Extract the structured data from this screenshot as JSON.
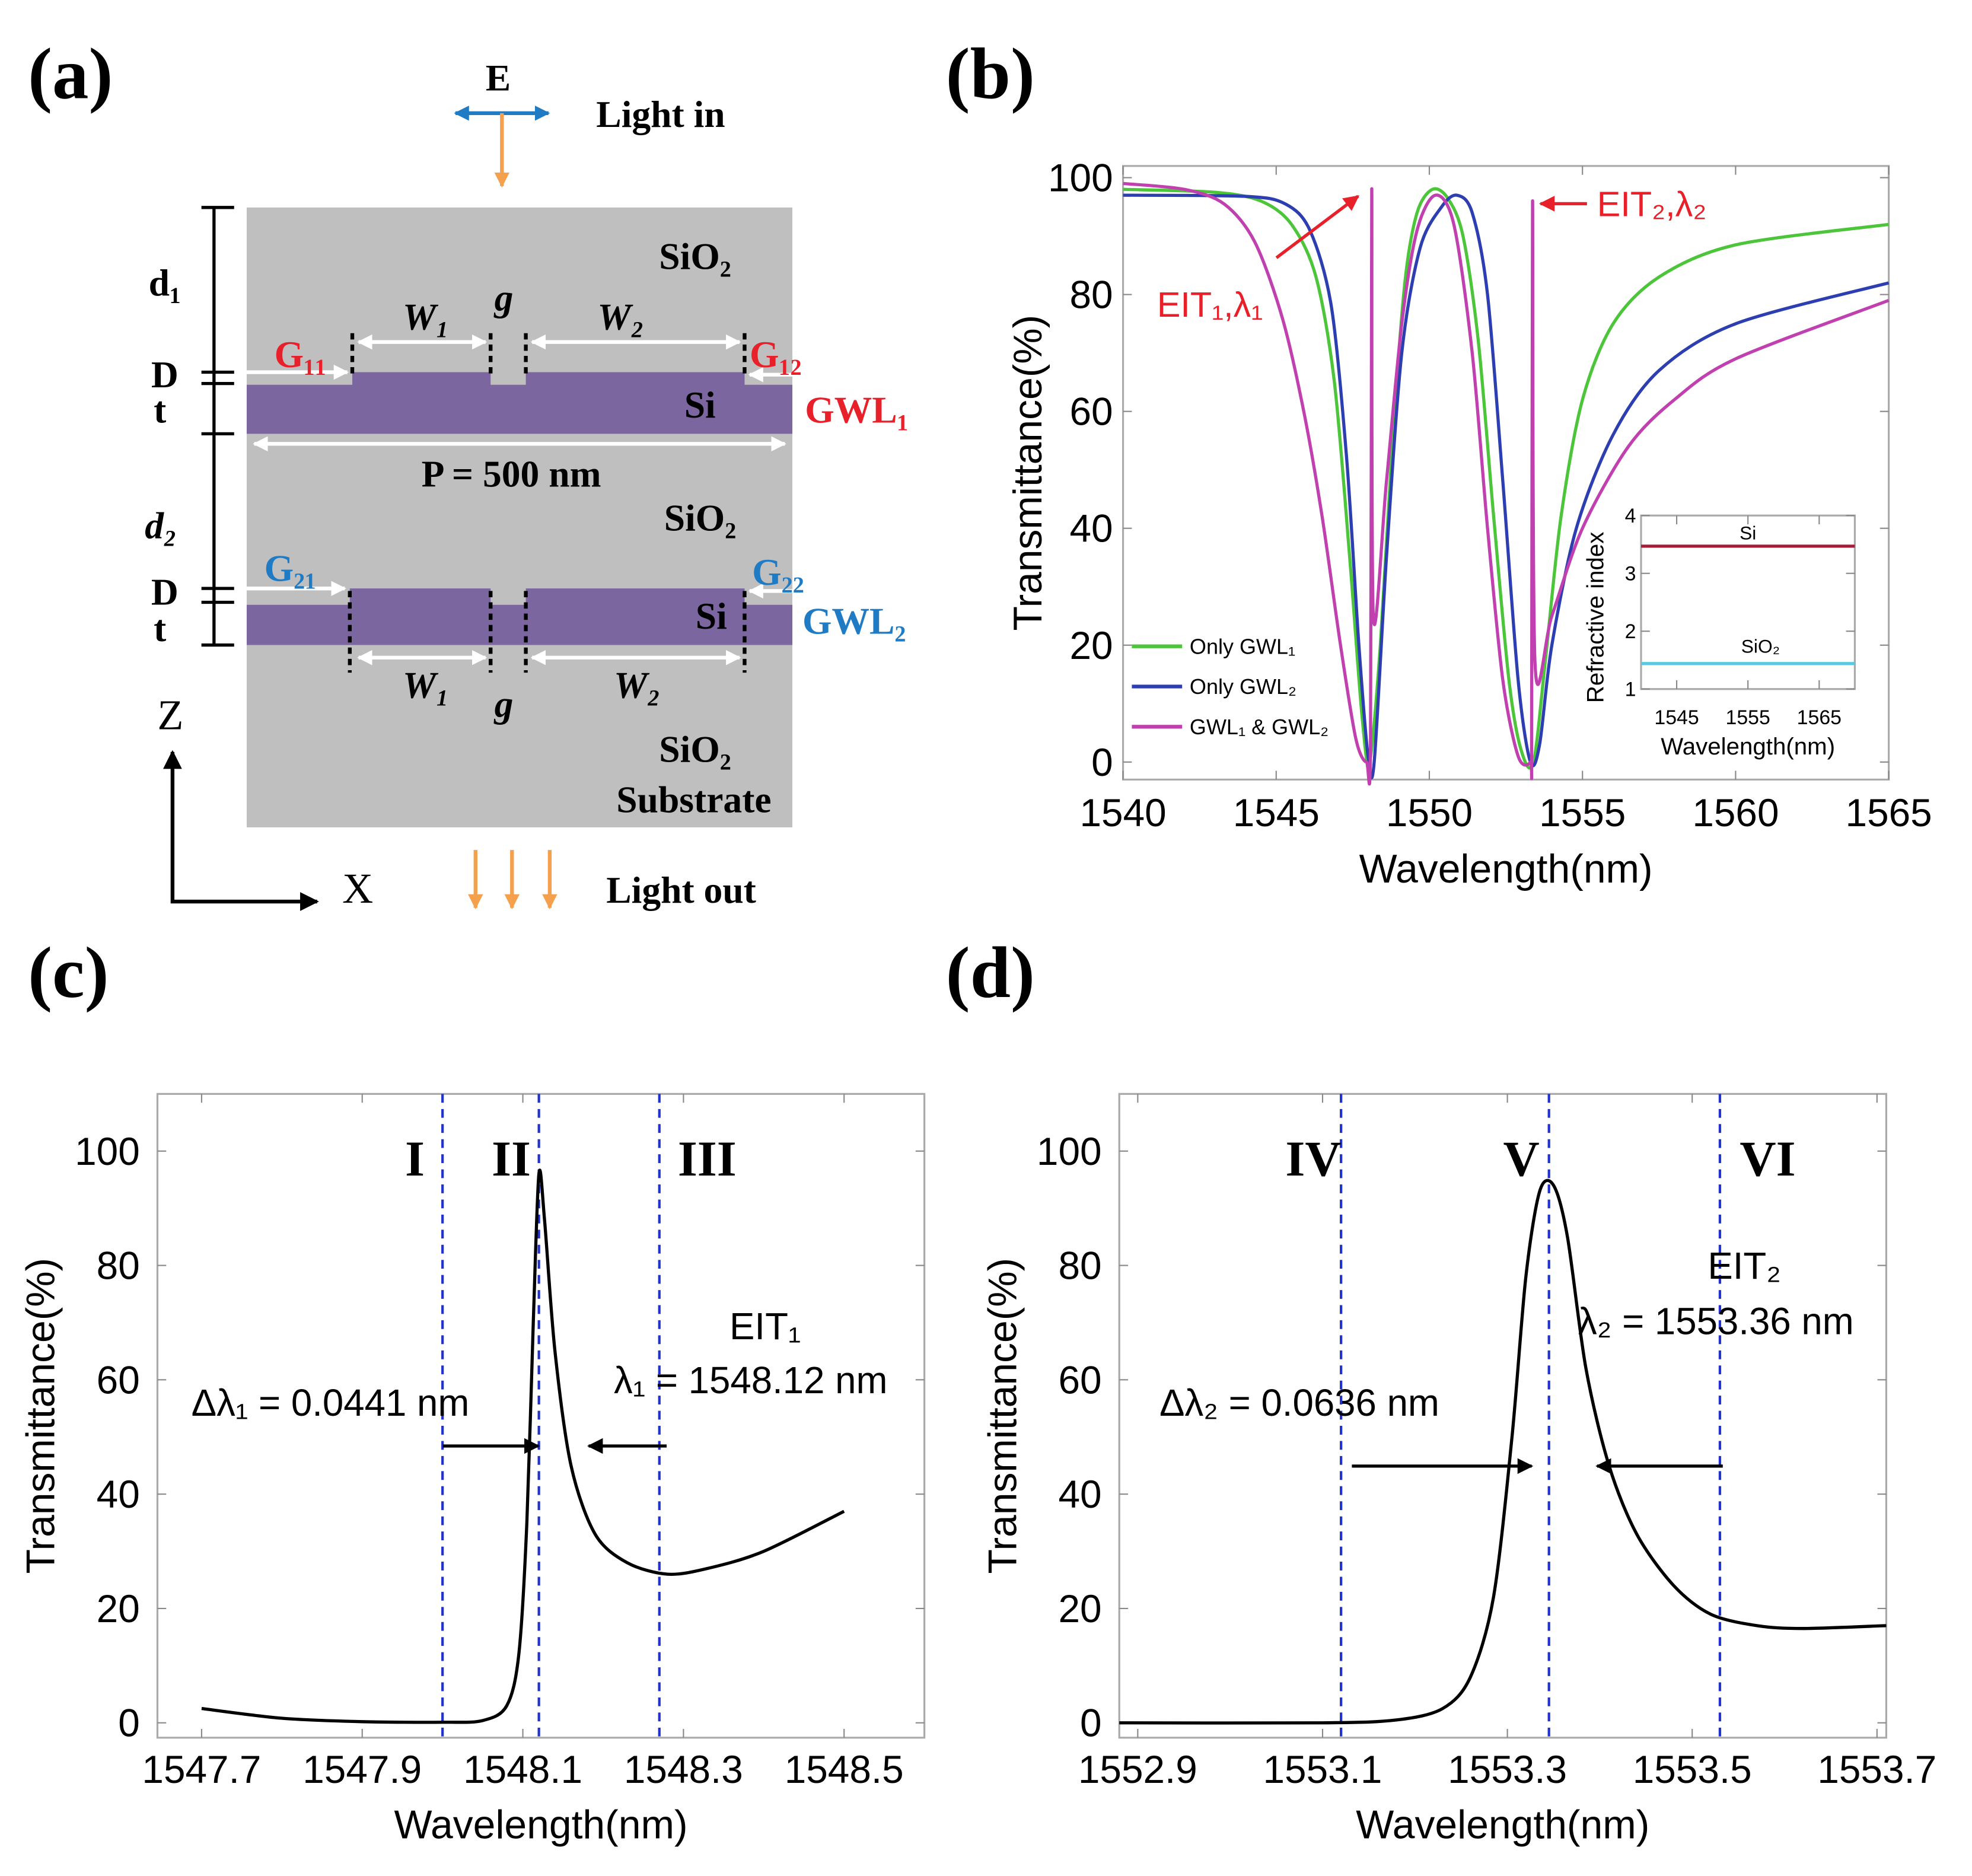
{
  "panels": {
    "a": "(a)",
    "b": "(b)",
    "c": "(c)",
    "d": "(d)"
  },
  "diagram": {
    "e_field": "E",
    "light_in": "Light in",
    "light_out": "Light out",
    "d1": "d₁",
    "d2": "d₂",
    "D": "D",
    "t": "t",
    "w1": "W₁",
    "w2": "W₂",
    "g": "g",
    "g11": "G₁₁",
    "g12": "G₁₂",
    "g21": "G₂₁",
    "g22": "G₂₂",
    "gwl1": "GWL₁",
    "gwl2": "GWL₂",
    "si": "Si",
    "sio2": "SiO₂",
    "substrate": "Substrate",
    "period": "P = 500 nm",
    "axis_z": "Z",
    "axis_x": "X",
    "colors": {
      "cladding": "#bfbfbf",
      "si": "#7b66a0",
      "red": "#e8202a",
      "blue": "#1f7bc4",
      "orange": "#f5a04c"
    }
  },
  "chart_data": [
    {
      "type": "line",
      "title": "",
      "xlabel": "Wavelength(nm)",
      "ylabel": "Transmittance(%)",
      "xlim": [
        1540,
        1565
      ],
      "ylim": [
        -3,
        102
      ],
      "xticks": [
        "1540",
        "1545",
        "1550",
        "1555",
        "1560",
        "1565"
      ],
      "yticks": [
        "0",
        "20",
        "40",
        "60",
        "80",
        "100"
      ],
      "grid": false,
      "legend_position": "bottom-left",
      "series": [
        {
          "name": "Only GWL₁",
          "color": "#4cc53a",
          "points": [
            [
              1540,
              98
            ],
            [
              1543,
              97.5
            ],
            [
              1544.5,
              96
            ],
            [
              1545.5,
              92
            ],
            [
              1546.3,
              83
            ],
            [
              1546.9,
              65
            ],
            [
              1547.4,
              35
            ],
            [
              1547.8,
              8
            ],
            [
              1548.05,
              0
            ],
            [
              1548.4,
              20
            ],
            [
              1548.8,
              55
            ],
            [
              1549.2,
              82
            ],
            [
              1549.6,
              94
            ],
            [
              1550.1,
              98
            ],
            [
              1550.6,
              96.5
            ],
            [
              1551.1,
              90
            ],
            [
              1551.6,
              72
            ],
            [
              1552.1,
              42
            ],
            [
              1552.6,
              14
            ],
            [
              1553.0,
              2
            ],
            [
              1553.4,
              0
            ],
            [
              1553.8,
              18
            ],
            [
              1554.3,
              42
            ],
            [
              1555,
              62
            ],
            [
              1556,
              75
            ],
            [
              1557.5,
              83
            ],
            [
              1560,
              88.5
            ],
            [
              1565,
              92
            ]
          ]
        },
        {
          "name": "Only GWL₂",
          "color": "#2d3fb0",
          "points": [
            [
              1540,
              97
            ],
            [
              1544,
              96.8
            ],
            [
              1545.3,
              95.5
            ],
            [
              1546.1,
              91
            ],
            [
              1546.8,
              78
            ],
            [
              1547.3,
              52
            ],
            [
              1547.7,
              20
            ],
            [
              1548.0,
              1
            ],
            [
              1548.2,
              0
            ],
            [
              1548.6,
              35
            ],
            [
              1549.1,
              70
            ],
            [
              1549.7,
              88
            ],
            [
              1550.4,
              95
            ],
            [
              1550.9,
              97
            ],
            [
              1551.4,
              94
            ],
            [
              1551.9,
              80
            ],
            [
              1552.4,
              48
            ],
            [
              1552.9,
              14
            ],
            [
              1553.3,
              0
            ],
            [
              1553.6,
              3
            ],
            [
              1554.0,
              20
            ],
            [
              1554.8,
              40
            ],
            [
              1556,
              56
            ],
            [
              1557.5,
              67
            ],
            [
              1560,
              75
            ],
            [
              1565,
              82
            ]
          ]
        },
        {
          "name": "GWL₁ & GWL₂",
          "color": "#c040b0",
          "points": [
            [
              1540,
              99
            ],
            [
              1542,
              98
            ],
            [
              1543.3,
              95.5
            ],
            [
              1544.3,
              89
            ],
            [
              1545.2,
              76
            ],
            [
              1545.9,
              60
            ],
            [
              1546.5,
              42
            ],
            [
              1547.1,
              20
            ],
            [
              1547.6,
              4
            ],
            [
              1547.95,
              0
            ],
            [
              1548.08,
              4
            ],
            [
              1548.12,
              98
            ],
            [
              1548.17,
              25
            ],
            [
              1548.6,
              48
            ],
            [
              1549.1,
              75
            ],
            [
              1549.6,
              91
            ],
            [
              1550.2,
              97
            ],
            [
              1550.8,
              92
            ],
            [
              1551.4,
              70
            ],
            [
              1551.9,
              40
            ],
            [
              1552.4,
              14
            ],
            [
              1552.9,
              1
            ],
            [
              1553.3,
              0
            ],
            [
              1553.34,
              5
            ],
            [
              1553.37,
              96
            ],
            [
              1553.45,
              17
            ],
            [
              1554,
              25
            ],
            [
              1555,
              40
            ],
            [
              1556.5,
              54
            ],
            [
              1558,
              62
            ],
            [
              1560,
              69
            ],
            [
              1565,
              79
            ]
          ]
        }
      ],
      "annotations": [
        {
          "label": "EIT₁,λ₁",
          "color": "#e8202a",
          "x": 1548.12
        },
        {
          "label": "EIT₂,λ₂",
          "color": "#e8202a",
          "x": 1553.36
        }
      ]
    },
    {
      "type": "line",
      "title": "",
      "xlabel": "Wavelength(nm)",
      "ylabel": "Refractive index",
      "xlim": [
        1540,
        1570
      ],
      "ylim": [
        1,
        4
      ],
      "xticks": [
        "1545",
        "1555",
        "1565"
      ],
      "xtick_values": [
        1545,
        1555,
        1565
      ],
      "yticks": [
        "1",
        "2",
        "3",
        "4"
      ],
      "series": [
        {
          "name": "Si",
          "color": "#a0203a",
          "points": [
            [
              1540,
              3.47
            ],
            [
              1570,
              3.47
            ]
          ]
        },
        {
          "name": "SiO₂",
          "color": "#5cc8e0",
          "points": [
            [
              1540,
              1.44
            ],
            [
              1570,
              1.44
            ]
          ]
        }
      ]
    },
    {
      "type": "line",
      "title": "",
      "xlabel": "Wavelength(nm)",
      "ylabel": "Transmittance(%)",
      "xlim": [
        1547.645,
        1548.6
      ],
      "ylim": [
        -2.6,
        110
      ],
      "xticks": [
        "1547.7",
        "1547.9",
        "1548.1",
        "1548.3",
        "1548.5"
      ],
      "xtick_values": [
        1547.7,
        1547.9,
        1548.1,
        1548.3,
        1548.5
      ],
      "yticks": [
        "0",
        "20",
        "40",
        "60",
        "80",
        "100"
      ],
      "series": [
        {
          "name": "EIT₁",
          "color": "#000000",
          "points": [
            [
              1547.7,
              2.5
            ],
            [
              1547.8,
              0.8
            ],
            [
              1547.9,
              0.2
            ],
            [
              1548.0,
              0.1
            ],
            [
              1548.05,
              0.4
            ],
            [
              1548.08,
              3
            ],
            [
              1548.095,
              12
            ],
            [
              1548.105,
              35
            ],
            [
              1548.113,
              70
            ],
            [
              1548.12,
              96
            ],
            [
              1548.127,
              88
            ],
            [
              1548.14,
              65
            ],
            [
              1548.16,
              45
            ],
            [
              1548.19,
              33
            ],
            [
              1548.23,
              28
            ],
            [
              1548.28,
              26
            ],
            [
              1548.33,
              27
            ],
            [
              1548.4,
              30
            ],
            [
              1548.5,
              37
            ]
          ]
        }
      ],
      "vlines": [
        {
          "x": 1548.0,
          "label": "I"
        },
        {
          "x": 1548.12,
          "label": "II"
        },
        {
          "x": 1548.27,
          "label": "III"
        }
      ],
      "texts": {
        "eit": "EIT₁",
        "lambda": "λ₁ = 1548.12 nm",
        "fwhm": "Δλ₁ = 0.0441 nm"
      }
    },
    {
      "type": "line",
      "title": "",
      "xlabel": "Wavelength(nm)",
      "ylabel": "Transmittance(%)",
      "xlim": [
        1552.88,
        1553.71
      ],
      "ylim": [
        -2.6,
        110
      ],
      "xticks": [
        "1552.9",
        "1553.1",
        "1553.3",
        "1553.5",
        "1553.7"
      ],
      "xtick_values": [
        1552.9,
        1553.1,
        1553.3,
        1553.5,
        1553.7
      ],
      "yticks": [
        "0",
        "20",
        "40",
        "60",
        "80",
        "100"
      ],
      "series": [
        {
          "name": "EIT₂",
          "color": "#000000",
          "points": [
            [
              1552.88,
              0
            ],
            [
              1553.1,
              0
            ],
            [
              1553.18,
              0.5
            ],
            [
              1553.23,
              2.5
            ],
            [
              1553.26,
              8
            ],
            [
              1553.285,
              22
            ],
            [
              1553.305,
              50
            ],
            [
              1553.32,
              78
            ],
            [
              1553.335,
              93
            ],
            [
              1553.35,
              94
            ],
            [
              1553.365,
              85
            ],
            [
              1553.385,
              62
            ],
            [
              1553.41,
              45
            ],
            [
              1553.44,
              33
            ],
            [
              1553.48,
              24
            ],
            [
              1553.52,
              19
            ],
            [
              1553.57,
              17
            ],
            [
              1553.62,
              16.5
            ],
            [
              1553.71,
              17
            ]
          ]
        }
      ],
      "vlines": [
        {
          "x": 1553.12,
          "label": "IV"
        },
        {
          "x": 1553.345,
          "label": "V"
        },
        {
          "x": 1553.53,
          "label": "VI"
        }
      ],
      "texts": {
        "eit": "EIT₂",
        "lambda": "λ₂ = 1553.36 nm",
        "fwhm": "Δλ₂ = 0.0636 nm"
      }
    }
  ]
}
